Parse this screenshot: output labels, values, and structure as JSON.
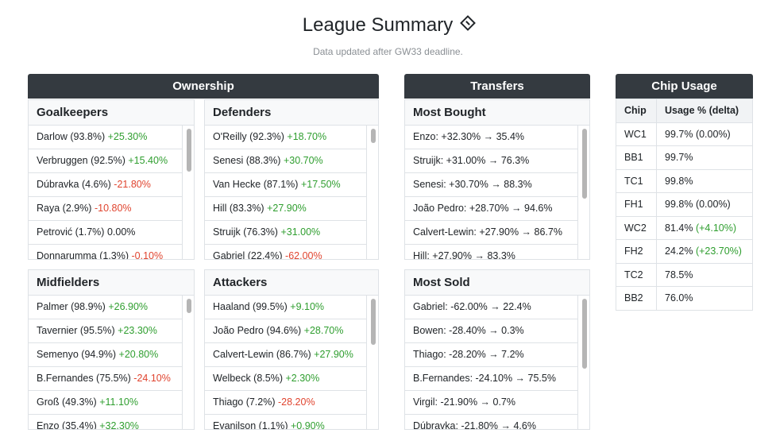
{
  "header": {
    "title": "League Summary",
    "subtitle": "Data updated after GW33 deadline."
  },
  "ownership": {
    "title": "Ownership",
    "goalkeepers": {
      "title": "Goalkeepers",
      "rows": [
        {
          "label": "Darlow (93.8%)",
          "delta": "+25.30%",
          "tone": "pos"
        },
        {
          "label": "Verbruggen (92.5%)",
          "delta": "+15.40%",
          "tone": "pos"
        },
        {
          "label": "Dúbravka (4.6%)",
          "delta": "-21.80%",
          "tone": "neg"
        },
        {
          "label": "Raya (2.9%)",
          "delta": "-10.80%",
          "tone": "neg"
        },
        {
          "label": "Petrović (1.7%)",
          "delta": "0.00%",
          "tone": "neu"
        },
        {
          "label": "Donnarumma (1.3%)",
          "delta": "-0.10%",
          "tone": "neg"
        }
      ]
    },
    "defenders": {
      "title": "Defenders",
      "rows": [
        {
          "label": "O'Reilly (92.3%)",
          "delta": "+18.70%",
          "tone": "pos"
        },
        {
          "label": "Senesi (88.3%)",
          "delta": "+30.70%",
          "tone": "pos"
        },
        {
          "label": "Van Hecke (87.1%)",
          "delta": "+17.50%",
          "tone": "pos"
        },
        {
          "label": "Hill (83.3%)",
          "delta": "+27.90%",
          "tone": "pos"
        },
        {
          "label": "Struijk (76.3%)",
          "delta": "+31.00%",
          "tone": "pos"
        },
        {
          "label": "Gabriel (22.4%)",
          "delta": "-62.00%",
          "tone": "neg"
        }
      ]
    },
    "midfielders": {
      "title": "Midfielders",
      "rows": [
        {
          "label": "Palmer (98.9%)",
          "delta": "+26.90%",
          "tone": "pos"
        },
        {
          "label": "Tavernier (95.5%)",
          "delta": "+23.30%",
          "tone": "pos"
        },
        {
          "label": "Semenyo (94.9%)",
          "delta": "+20.80%",
          "tone": "pos"
        },
        {
          "label": "B.Fernandes (75.5%)",
          "delta": "-24.10%",
          "tone": "neg"
        },
        {
          "label": "Groß (49.3%)",
          "delta": "+11.10%",
          "tone": "pos"
        },
        {
          "label": "Enzo (35.4%)",
          "delta": "+32.30%",
          "tone": "pos"
        }
      ]
    },
    "attackers": {
      "title": "Attackers",
      "rows": [
        {
          "label": "Haaland (99.5%)",
          "delta": "+9.10%",
          "tone": "pos"
        },
        {
          "label": "João Pedro (94.6%)",
          "delta": "+28.70%",
          "tone": "pos"
        },
        {
          "label": "Calvert-Lewin (86.7%)",
          "delta": "+27.90%",
          "tone": "pos"
        },
        {
          "label": "Welbeck (8.5%)",
          "delta": "+2.30%",
          "tone": "pos"
        },
        {
          "label": "Thiago (7.2%)",
          "delta": "-28.20%",
          "tone": "neg"
        },
        {
          "label": "Evanilson (1.1%)",
          "delta": "+0.90%",
          "tone": "pos"
        }
      ]
    }
  },
  "transfers": {
    "title": "Transfers",
    "most_bought": {
      "title": "Most Bought",
      "rows": [
        "Enzo: +32.30% → 35.4%",
        "Struijk: +31.00% → 76.3%",
        "Senesi: +30.70% → 88.3%",
        "João Pedro: +28.70% → 94.6%",
        "Calvert-Lewin: +27.90% → 86.7%",
        "Hill: +27.90% → 83.3%"
      ]
    },
    "most_sold": {
      "title": "Most Sold",
      "rows": [
        "Gabriel: -62.00% → 22.4%",
        "Bowen: -28.40% → 0.3%",
        "Thiago: -28.20% → 7.2%",
        "B.Fernandes: -24.10% → 75.5%",
        "Virgil: -21.90% → 0.7%",
        "Dúbravka: -21.80% → 4.6%"
      ]
    }
  },
  "chips": {
    "title": "Chip Usage",
    "columns": [
      "Chip",
      "Usage % (delta)"
    ],
    "rows": [
      {
        "chip": "WC1",
        "usage": "99.7%",
        "delta": "(0.00%)",
        "tone": "neu"
      },
      {
        "chip": "BB1",
        "usage": "99.7%",
        "delta": "",
        "tone": "neu"
      },
      {
        "chip": "TC1",
        "usage": "99.8%",
        "delta": "",
        "tone": "neu"
      },
      {
        "chip": "FH1",
        "usage": "99.8%",
        "delta": "(0.00%)",
        "tone": "neu"
      },
      {
        "chip": "WC2",
        "usage": "81.4%",
        "delta": "(+4.10%)",
        "tone": "pos"
      },
      {
        "chip": "FH2",
        "usage": "24.2%",
        "delta": "(+23.70%)",
        "tone": "pos"
      },
      {
        "chip": "TC2",
        "usage": "78.5%",
        "delta": "",
        "tone": "neu"
      },
      {
        "chip": "BB2",
        "usage": "76.0%",
        "delta": "",
        "tone": "neu"
      }
    ]
  },
  "colors": {
    "header_bg": "#343a40",
    "positive": "#2f9e2f",
    "negative": "#e0442f"
  }
}
